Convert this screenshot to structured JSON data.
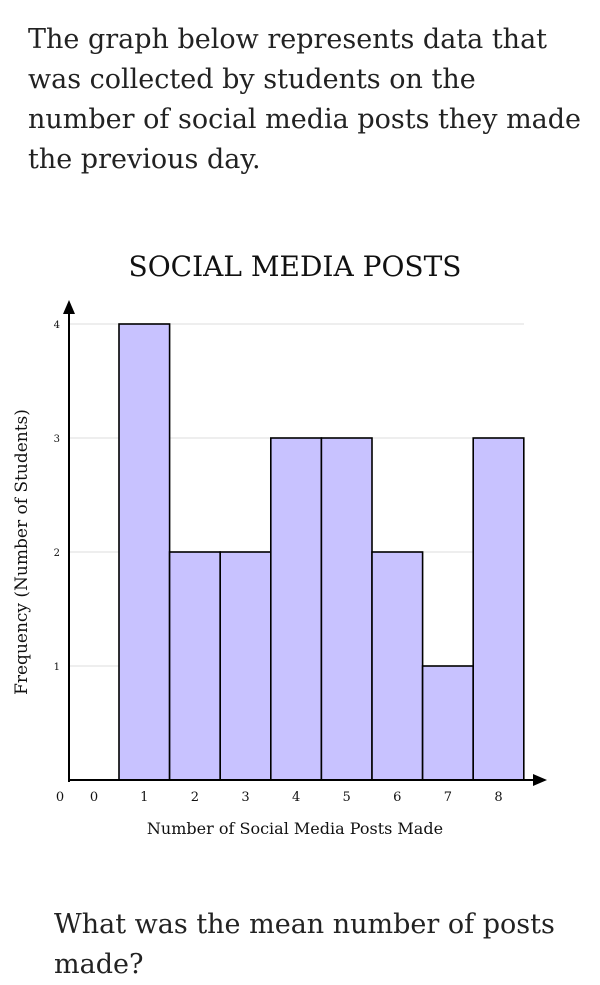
{
  "prompt_text": "The graph below represents data that was collected by students on the number of social media posts they made the previous day.",
  "question_text": "What was the mean number of posts made?",
  "chart_data": {
    "type": "bar",
    "title": "SOCIAL MEDIA POSTS",
    "xlabel": "Number of Social Media Posts Made",
    "ylabel": "Frequency (Number of Students)",
    "categories": [
      "1",
      "2",
      "3",
      "4",
      "5",
      "6",
      "7",
      "8"
    ],
    "values": [
      4,
      2,
      2,
      3,
      3,
      2,
      1,
      3
    ],
    "x_extra_ticks": [
      "0",
      "0"
    ],
    "yticks": [
      1,
      2,
      3,
      4
    ],
    "ylim": [
      0,
      4
    ],
    "grid": true,
    "bar_fill": "#c8c2ff",
    "bar_stroke": "#000000",
    "grid_color": "#dddddd"
  }
}
